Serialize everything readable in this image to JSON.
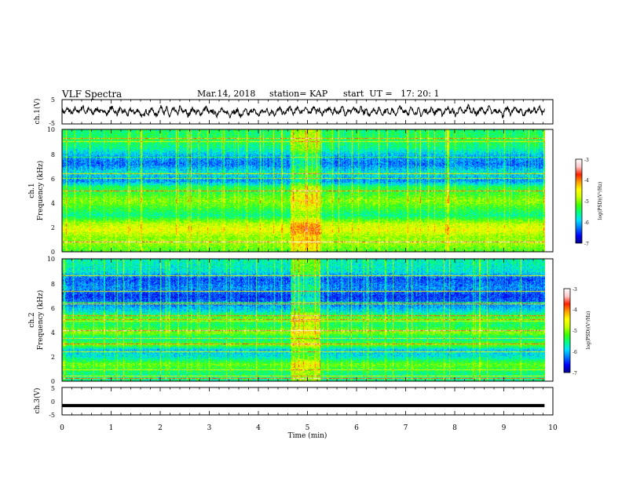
{
  "header": {
    "title": "VLF Spectra",
    "date": "Mar.14, 2018",
    "station": "station= KAP",
    "start_time": "start  UT =   17: 20: 1"
  },
  "chart_data": [
    {
      "id": "ch1-waveform",
      "type": "line",
      "ylabel": "ch.1(V)",
      "ylim": [
        -5,
        5
      ],
      "ytick_labels": [
        "-5",
        "5"
      ],
      "xlim": [
        0,
        10
      ],
      "x_end": 9.83,
      "description_of_series": "noisy voltage waveform fluctuating roughly between -3 and +3 V",
      "series": [
        {
          "values": [
            0.8,
            -0.6,
            1.4,
            0.2,
            -1.1,
            1.9,
            -0.4,
            0.9,
            2.1,
            -0.7,
            1.2,
            0.3,
            -0.9,
            1.6,
            0.5,
            -0.2,
            1.1,
            -1.4,
            0.7,
            1.8,
            0.2,
            -0.8,
            1.3,
            -0.3,
            0.6,
            -1.6,
            0.9,
            0.1,
            -0.5,
            1.0,
            -1.2,
            -2.1,
            0.4,
            -0.6,
            1.5,
            -0.2,
            -1.8,
            0.8,
            2.3,
            -0.9,
            1.7,
            -2.4,
            0.6,
            1.1,
            -1.3,
            2.2,
            -0.4,
            0.9,
            -1.7,
            0.3,
            1.4,
            -0.6,
            0.2,
            -1.1,
            0.7,
            1.9,
            -0.8,
            0.4,
            -0.3,
            -1.5,
            0.6,
            1.2,
            -0.9,
            0.1,
            -1.9,
            0.5,
            -0.4,
            1.0,
            -2.2,
            -0.7,
            0.8,
            -1.3,
            0.2,
            0.9,
            -0.5,
            -1.6,
            0.4,
            -0.2,
            1.1,
            -0.9,
            0.6,
            -1.2,
            0.3,
            1.5,
            -0.4,
            -0.8,
            0.7,
            2.0,
            -1.1,
            0.5,
            1.6,
            -0.6,
            0.9,
            1.8,
            -1.0,
            0.4,
            2.4,
            -0.3,
            1.2,
            -1.4,
            0.6,
            0.2,
            1.7,
            -0.8,
            1.1,
            -0.5,
            0.3,
            1.9,
            -1.2,
            0.8,
            -0.2,
            1.4,
            0.5,
            -0.9,
            2.1,
            -0.6,
            0.7,
            -1.5,
            0.3,
            1.0,
            -0.4,
            1.6,
            -1.1,
            0.2,
            0.9,
            -0.7,
            1.3,
            -1.8,
            0.5,
            2.2,
            -0.3,
            0.8,
            -1.0,
            1.5,
            0.1,
            -0.6,
            1.2,
            -1.9,
            0.7,
            0.3,
            -0.4,
            1.8,
            -0.9,
            0.6,
            1.1,
            -1.3,
            0.4,
            2.0,
            -0.5,
            0.9,
            -1.6,
            0.2,
            1.4,
            -0.8,
            0.6,
            2.6,
            -0.2,
            1.0,
            -1.1,
            0.3,
            1.7,
            -0.7,
            0.5,
            2.3,
            -1.4,
            0.8,
            -0.3,
            1.2,
            -2.0,
            0.6,
            1.5,
            -0.9,
            0.4,
            2.1,
            -0.6,
            1.3,
            -1.7,
            0.2,
            0.9,
            -0.4,
            1.6,
            -1.0,
            2.5,
            -0.8,
            0.7
          ]
        }
      ]
    },
    {
      "id": "ch1-spectrogram",
      "type": "heatmap",
      "ylabel": "ch.1\nFrequency (kHz)",
      "ylim": [
        0,
        10
      ],
      "ytick_labels": [
        "0",
        "2",
        "4",
        "6",
        "8",
        "10"
      ],
      "xlim": [
        0,
        10
      ],
      "x_end": 9.83,
      "colorbar": {
        "label": "log(PSD)(V²/Hz)",
        "range": [
          -7,
          -3
        ],
        "tick_labels": [
          "-7",
          "-6",
          "-5",
          "-4",
          "-3"
        ]
      },
      "interference_band_x": [
        4.65,
        5.25
      ],
      "description_of_values": "log PSD between -7 and -3; higher (green/yellow) below ~5 kHz with horizontal line emissions, lower (blue) 5.5–8.5 kHz, broadband noise stripes throughout",
      "band_profile_khz": [
        {
          "f": 0.2,
          "v": -5.2
        },
        {
          "f": 0.8,
          "v": -4.9
        },
        {
          "f": 1.2,
          "v": -5.0
        },
        {
          "f": 1.8,
          "v": -4.6
        },
        {
          "f": 2.3,
          "v": -4.8
        },
        {
          "f": 3.0,
          "v": -5.6
        },
        {
          "f": 3.6,
          "v": -5.3
        },
        {
          "f": 4.2,
          "v": -5.0
        },
        {
          "f": 4.8,
          "v": -5.3
        },
        {
          "f": 5.3,
          "v": -5.4
        },
        {
          "f": 5.8,
          "v": -6.2
        },
        {
          "f": 6.5,
          "v": -5.8
        },
        {
          "f": 7.2,
          "v": -6.3
        },
        {
          "f": 7.8,
          "v": -6.1
        },
        {
          "f": 8.5,
          "v": -5.6
        },
        {
          "f": 9.2,
          "v": -5.4
        },
        {
          "f": 9.8,
          "v": -5.5
        }
      ]
    },
    {
      "id": "ch2-spectrogram",
      "type": "heatmap",
      "ylabel": "ch.2\nFrequency (kHz)",
      "ylim": [
        0,
        10
      ],
      "ytick_labels": [
        "0",
        "2",
        "4",
        "6",
        "8",
        "10"
      ],
      "xlim": [
        0,
        10
      ],
      "x_end": 9.83,
      "colorbar": {
        "label": "log(PSD)(V²/Hz)",
        "range": [
          -7,
          -3
        ],
        "tick_labels": [
          "-7",
          "-6",
          "-5",
          "-4",
          "-3"
        ]
      },
      "interference_band_x": [
        4.65,
        5.25
      ],
      "description_of_values": "log PSD between -7 and -3; blue (low) 6–9 kHz, cyan/green 0–5 kHz with horizontal line emissions near 1.5, 3, 4 and 5 kHz",
      "band_profile_khz": [
        {
          "f": 0.2,
          "v": -5.6
        },
        {
          "f": 0.8,
          "v": -5.5
        },
        {
          "f": 1.4,
          "v": -5.1
        },
        {
          "f": 2.0,
          "v": -5.8
        },
        {
          "f": 2.6,
          "v": -6.0
        },
        {
          "f": 3.0,
          "v": -5.1
        },
        {
          "f": 3.5,
          "v": -5.7
        },
        {
          "f": 4.0,
          "v": -5.0
        },
        {
          "f": 4.6,
          "v": -5.5
        },
        {
          "f": 5.2,
          "v": -5.2
        },
        {
          "f": 5.8,
          "v": -5.9
        },
        {
          "f": 6.4,
          "v": -6.3
        },
        {
          "f": 7.0,
          "v": -6.5
        },
        {
          "f": 7.6,
          "v": -6.2
        },
        {
          "f": 8.4,
          "v": -6.4
        },
        {
          "f": 9.0,
          "v": -5.8
        },
        {
          "f": 9.8,
          "v": -5.7
        }
      ]
    },
    {
      "id": "ch3-waveform",
      "type": "line",
      "ylabel": "ch.3(V)",
      "ylim": [
        -5,
        5
      ],
      "ytick_labels": [
        "-5",
        "0",
        "5"
      ],
      "xlim": [
        0,
        10
      ],
      "x_end": 9.83,
      "series": [
        {
          "values": [
            -1.6,
            -1.6
          ]
        }
      ]
    }
  ],
  "x_axis": {
    "label": "Time  (min)",
    "tick_labels": [
      "0",
      "1",
      "2",
      "3",
      "4",
      "5",
      "6",
      "7",
      "8",
      "9",
      "10"
    ],
    "range": [
      0,
      10
    ]
  },
  "colors": {
    "colormap": [
      "#00008c",
      "#0000ff",
      "#0078ff",
      "#00e0ff",
      "#00ff80",
      "#40ff00",
      "#c8ff00",
      "#ffff00",
      "#ffa000",
      "#ff2000",
      "#ffc8c8",
      "#ffffff"
    ]
  }
}
